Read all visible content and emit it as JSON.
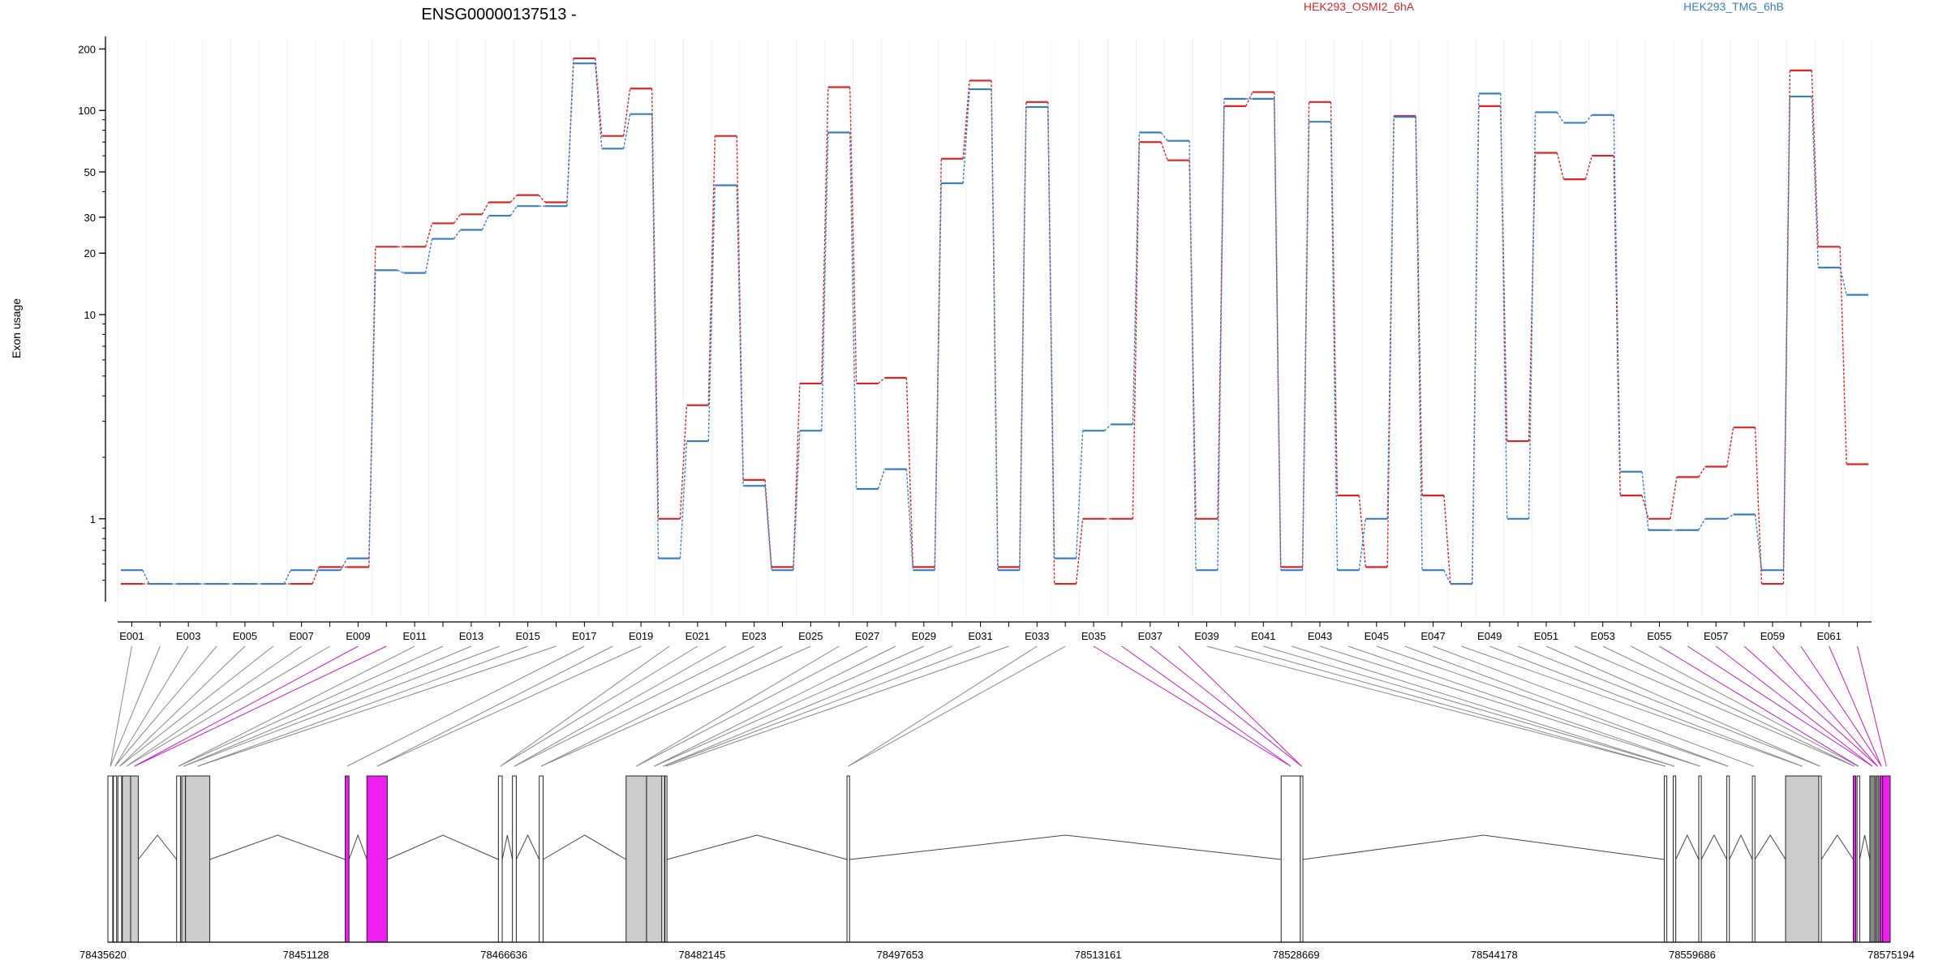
{
  "chart_data": {
    "type": "line",
    "title": "ENSG00000137513 -",
    "ylabel": "Exon usage",
    "yscale": "log",
    "yticks": [
      1,
      10,
      20,
      30,
      50,
      100,
      200
    ],
    "ylim": [
      0.4,
      220
    ],
    "grid": "vertical-light",
    "legend_placement": "top",
    "categories": [
      "E001",
      "E002",
      "E003",
      "E004",
      "E005",
      "E006",
      "E007",
      "E008",
      "E009",
      "E010",
      "E011",
      "E012",
      "E013",
      "E014",
      "E015",
      "E016",
      "E017",
      "E018",
      "E019",
      "E020",
      "E021",
      "E022",
      "E023",
      "E024",
      "E025",
      "E026",
      "E027",
      "E028",
      "E029",
      "E030",
      "E031",
      "E032",
      "E033",
      "E034",
      "E035",
      "E036",
      "E037",
      "E038",
      "E039",
      "E040",
      "E041",
      "E042",
      "E043",
      "E044",
      "E045",
      "E046",
      "E047",
      "E048",
      "E049",
      "E050",
      "E051",
      "E052",
      "E053",
      "E054",
      "E055",
      "E056",
      "E057",
      "E058",
      "E059",
      "E060",
      "E061",
      "E062"
    ],
    "xtick_labels": [
      "E001",
      "E003",
      "E005",
      "E007",
      "E009",
      "E011",
      "E013",
      "E015",
      "E017",
      "E019",
      "E021",
      "E023",
      "E025",
      "E027",
      "E029",
      "E031",
      "E033",
      "E035",
      "E037",
      "E039",
      "E041",
      "E043",
      "E045",
      "E047",
      "E049",
      "E051",
      "E053",
      "E055",
      "E057",
      "E059",
      "E061"
    ],
    "series": [
      {
        "name": "HEK293_OSMI2_6hA",
        "color": "#d62728",
        "values": [
          0.48,
          0.48,
          0.48,
          0.48,
          0.48,
          0.48,
          0.48,
          0.58,
          0.58,
          21.5,
          21.5,
          28,
          31,
          35.5,
          38.5,
          35.5,
          180,
          75,
          128,
          1.0,
          3.6,
          75,
          1.55,
          0.58,
          4.6,
          130,
          4.6,
          4.9,
          0.58,
          58,
          140,
          0.58,
          110,
          0.48,
          1.0,
          1.0,
          70,
          57,
          1.0,
          105,
          123,
          0.58,
          110,
          1.3,
          0.58,
          94,
          1.3,
          0.48,
          105,
          2.4,
          62,
          46,
          60,
          1.3,
          1.0,
          1.6,
          1.8,
          2.8,
          0.48,
          157,
          21.5,
          1.85
        ]
      },
      {
        "name": "HEK293_TMG_6hB",
        "color": "#3a7dc0",
        "values": [
          0.56,
          0.48,
          0.48,
          0.48,
          0.48,
          0.48,
          0.56,
          0.56,
          0.64,
          16.5,
          16.0,
          23.5,
          26,
          30.5,
          34,
          34,
          170,
          65,
          96,
          0.64,
          2.4,
          43,
          1.45,
          0.56,
          2.7,
          78,
          1.4,
          1.75,
          0.56,
          44,
          127,
          0.56,
          104,
          0.64,
          2.7,
          2.9,
          78,
          71,
          0.56,
          114,
          114,
          0.56,
          88,
          0.56,
          1.0,
          93,
          0.56,
          0.48,
          121,
          1.0,
          98,
          87,
          95,
          1.7,
          0.88,
          0.88,
          1.0,
          1.05,
          0.56,
          117,
          17,
          12.5
        ]
      }
    ],
    "annotations": {
      "gene_start_coord": "78435620",
      "genomic_coords": [
        "78435620",
        "78451128",
        "78466636",
        "78482145",
        "78497653",
        "78513161",
        "78528669",
        "78544178",
        "78559686",
        "78575194"
      ]
    }
  },
  "model": {
    "gene_range": [
      78435620,
      78575194
    ],
    "exons": [
      {
        "s": 78435620,
        "e": 78436000,
        "fill": "#ffffff"
      },
      {
        "s": 78436050,
        "e": 78436300,
        "fill": "#ffffff"
      },
      {
        "s": 78436400,
        "e": 78436700,
        "fill": "#ffffff"
      },
      {
        "s": 78436750,
        "e": 78437400,
        "fill": "#cccccc"
      },
      {
        "s": 78437400,
        "e": 78438000,
        "fill": "#cccccc"
      },
      {
        "s": 78441000,
        "e": 78441300,
        "fill": "#ffffff"
      },
      {
        "s": 78441400,
        "e": 78441700,
        "fill": "#cccccc"
      },
      {
        "s": 78441700,
        "e": 78443600,
        "fill": "#cccccc"
      },
      {
        "s": 78454200,
        "e": 78454500,
        "fill": "#ee1fee"
      },
      {
        "s": 78455900,
        "e": 78457500,
        "fill": "#ee1fee"
      },
      {
        "s": 78466200,
        "e": 78466500,
        "fill": "#ffffff"
      },
      {
        "s": 78467300,
        "e": 78467600,
        "fill": "#ffffff"
      },
      {
        "s": 78469400,
        "e": 78469700,
        "fill": "#ffffff"
      },
      {
        "s": 78476200,
        "e": 78477800,
        "fill": "#cccccc"
      },
      {
        "s": 78477800,
        "e": 78479000,
        "fill": "#cccccc"
      },
      {
        "s": 78479000,
        "e": 78479200,
        "fill": "#ffffff"
      },
      {
        "s": 78479250,
        "e": 78479400,
        "fill": "#ffffff"
      },
      {
        "s": 78493500,
        "e": 78493700,
        "fill": "#ffffff"
      },
      {
        "s": 78527500,
        "e": 78529000,
        "fill": "#ffffff"
      },
      {
        "s": 78529000,
        "e": 78529200,
        "fill": "#ffffff"
      },
      {
        "s": 78557500,
        "e": 78557700,
        "fill": "#ffffff"
      },
      {
        "s": 78558200,
        "e": 78558400,
        "fill": "#ffffff"
      },
      {
        "s": 78560200,
        "e": 78560400,
        "fill": "#ffffff"
      },
      {
        "s": 78562400,
        "e": 78562600,
        "fill": "#ffffff"
      },
      {
        "s": 78564400,
        "e": 78564600,
        "fill": "#ffffff"
      },
      {
        "s": 78567000,
        "e": 78569600,
        "fill": "#cccccc"
      },
      {
        "s": 78569600,
        "e": 78569800,
        "fill": "#ffffff"
      },
      {
        "s": 78572300,
        "e": 78572500,
        "fill": "#ee1fee"
      },
      {
        "s": 78572600,
        "e": 78572800,
        "fill": "#ffffff"
      },
      {
        "s": 78573600,
        "e": 78574000,
        "fill": "#888888"
      },
      {
        "s": 78574100,
        "e": 78574300,
        "fill": "#888888"
      },
      {
        "s": 78574400,
        "e": 78574600,
        "fill": "#ee1fee"
      },
      {
        "s": 78574600,
        "e": 78575194,
        "fill": "#ee1fee"
      }
    ],
    "magenta_bins": [
      8,
      9,
      34,
      35,
      36,
      37,
      54,
      55,
      56,
      57,
      58,
      59,
      60,
      61
    ]
  }
}
